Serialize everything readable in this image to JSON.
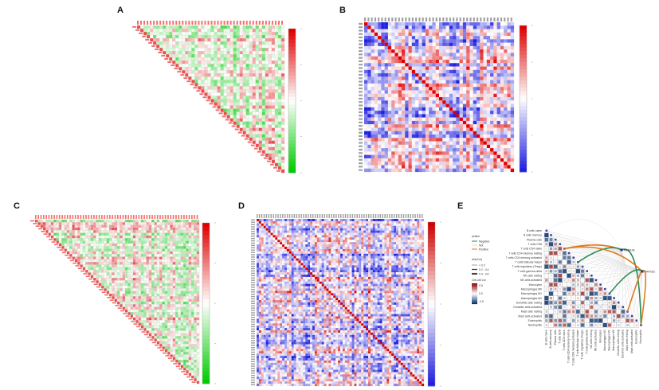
{
  "panels": [
    "A",
    "B",
    "C",
    "D",
    "E"
  ],
  "chart_data": [
    {
      "type": "heatmap",
      "title": "A",
      "shape": "lower-triangle",
      "n": 46,
      "seed": 11,
      "palette": [
        "#00cc00",
        "#ffffff",
        "#e00000"
      ],
      "value_range": [
        -1,
        1
      ]
    },
    {
      "type": "heatmap",
      "title": "B",
      "shape": "square",
      "n": 44,
      "seed": 23,
      "palette": [
        "#2020e0",
        "#ffffff",
        "#e00000"
      ],
      "value_range": [
        -1,
        1
      ]
    },
    {
      "type": "heatmap",
      "title": "C",
      "shape": "lower-triangle",
      "n": 62,
      "seed": 37,
      "palette": [
        "#00cc00",
        "#ffffff",
        "#e00000"
      ],
      "value_range": [
        -1,
        1
      ]
    },
    {
      "type": "heatmap",
      "title": "D",
      "shape": "square",
      "n": 72,
      "seed": 51,
      "palette": [
        "#2020e0",
        "#ffffff",
        "#d00000"
      ],
      "value_range": [
        -1,
        1
      ]
    },
    {
      "type": "heatmap",
      "title": "E",
      "shape": "lower-triangle",
      "seed": 77,
      "cell_types": [
        "B cells naive",
        "B cells memory",
        "Plasma cells",
        "T cells CD8",
        "T cells CD4 naive",
        "T cells CD4 memory resting",
        "T cells CD4 memory activated",
        "T cells follicular helper",
        "T cells regulatory (Tregs)",
        "T cells gamma delta",
        "NK cells resting",
        "NK cells activated",
        "Monocytes",
        "Macrophages M0",
        "Macrophages M1",
        "Macrophages M2",
        "Dendritic cells resting",
        "Dendritic cells activated",
        "Mast cells resting",
        "Mast cells activated",
        "Eosinophils",
        "Neutrophils"
      ],
      "genes": [
        "ADRA1B",
        "PAPSS2"
      ],
      "links": [
        {
          "gene": "ADRA1B",
          "cell": "T cells CD4 naive",
          "pvalue": "Positive"
        },
        {
          "gene": "ADRA1B",
          "cell": "T cells follicular helper",
          "pvalue": "Negative"
        },
        {
          "gene": "ADRA1B",
          "cell": "Neutrophils",
          "pvalue": "Negative"
        },
        {
          "gene": "PAPSS2",
          "cell": "T cells CD4 naive",
          "pvalue": "Positive"
        },
        {
          "gene": "PAPSS2",
          "cell": "Macrophages M1",
          "pvalue": "Negative"
        },
        {
          "gene": "PAPSS2",
          "cell": "Mast cells resting",
          "pvalue": "Positive"
        },
        {
          "gene": "PAPSS2",
          "cell": "Neutrophils",
          "pvalue": "Positive"
        }
      ],
      "legend": {
        "pvalue_title": "pvalue",
        "pvalue_items": [
          "Negative",
          "Not",
          "Positive"
        ],
        "pvalue_colors": [
          "#2e8b57",
          "#e8d8c8",
          "#e07b20"
        ],
        "abscor_title": "abs(Cor)",
        "abscor_items": [
          "< 0.2",
          "0.2 - 0.4",
          "0.4 - 0.6"
        ],
        "cor_title": "Cell-cell cor",
        "cor_ticks": [
          "0.5",
          "0.0",
          "-0.5"
        ]
      }
    }
  ]
}
